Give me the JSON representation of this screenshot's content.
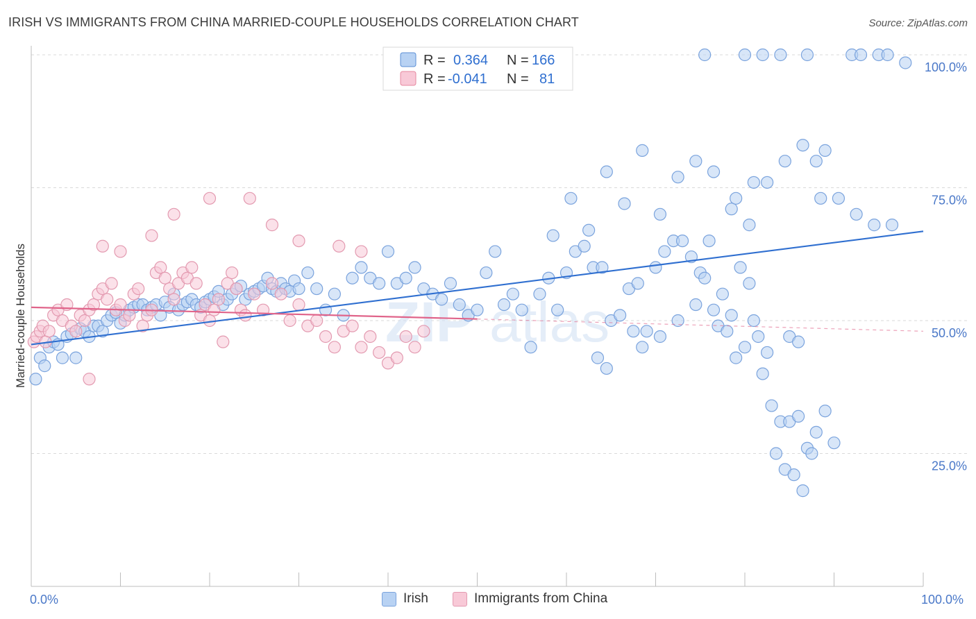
{
  "header": {
    "title": "IRISH VS IMMIGRANTS FROM CHINA MARRIED-COUPLE HOUSEHOLDS CORRELATION CHART",
    "source": "Source: ZipAtlas.com"
  },
  "legend_top": {
    "rows": [
      {
        "r_label": "R =",
        "r_value": "0.364",
        "n_label": "N =",
        "n_value": "166",
        "color": "#a9c8f0",
        "stroke": "#5b8fd6"
      },
      {
        "r_label": "R =",
        "r_value": "-0.041",
        "n_label": "N =",
        "n_value": "81",
        "color": "#f6bfd0",
        "stroke": "#e6889f"
      }
    ]
  },
  "legend_bottom": {
    "items": [
      {
        "label": "Irish",
        "color": "#b8d2f3",
        "stroke": "#7aa3dd"
      },
      {
        "label": "Immigrants from China",
        "color": "#f8c9d7",
        "stroke": "#e39ab0"
      }
    ]
  },
  "watermark": {
    "zip": "ZIP",
    "atlas": "atlas"
  },
  "chart_data": {
    "type": "scatter",
    "title": "IRISH VS IMMIGRANTS FROM CHINA MARRIED-COUPLE HOUSEHOLDS CORRELATION CHART",
    "xlabel": "",
    "ylabel": "Married-couple Households",
    "xlim": [
      0,
      100
    ],
    "ylim": [
      0,
      102
    ],
    "x_tick_labels": [
      "0.0%",
      "100.0%"
    ],
    "y_tick_labels": [
      "25.0%",
      "50.0%",
      "75.0%",
      "100.0%"
    ],
    "y_ticks": [
      25,
      50,
      75,
      100
    ],
    "grid": true,
    "legend_position": "top-center",
    "series": [
      {
        "name": "Irish",
        "color": "#7aa3dd",
        "fill": "#b8d2f3",
        "line_color": "#2f6fd0",
        "trend": {
          "x": [
            0,
            100
          ],
          "y": [
            45.5,
            66.8
          ]
        },
        "points": [
          [
            0.5,
            39
          ],
          [
            1.0,
            43
          ],
          [
            1.5,
            41.5
          ],
          [
            2.0,
            45
          ],
          [
            2.5,
            46
          ],
          [
            3.0,
            45.5
          ],
          [
            3.5,
            43
          ],
          [
            4.0,
            47
          ],
          [
            4.5,
            47.5
          ],
          [
            5.0,
            43
          ],
          [
            5.5,
            48.5
          ],
          [
            6.0,
            48
          ],
          [
            6.5,
            47
          ],
          [
            7.0,
            49
          ],
          [
            7.5,
            49
          ],
          [
            8.0,
            48
          ],
          [
            8.5,
            50
          ],
          [
            9.0,
            51
          ],
          [
            9.5,
            51.5
          ],
          [
            10.0,
            49.5
          ],
          [
            10.5,
            51
          ],
          [
            11.0,
            52
          ],
          [
            11.5,
            52.5
          ],
          [
            12.0,
            53
          ],
          [
            12.5,
            53
          ],
          [
            13.0,
            52
          ],
          [
            13.5,
            52.5
          ],
          [
            14.0,
            53
          ],
          [
            14.5,
            51
          ],
          [
            15.0,
            53.5
          ],
          [
            15.5,
            52.5
          ],
          [
            16.0,
            55
          ],
          [
            16.5,
            52
          ],
          [
            17.0,
            53
          ],
          [
            17.5,
            53.5
          ],
          [
            18.0,
            54
          ],
          [
            18.5,
            53
          ],
          [
            19.0,
            52.5
          ],
          [
            19.5,
            53.5
          ],
          [
            20.0,
            54
          ],
          [
            20.5,
            54.5
          ],
          [
            21.0,
            55.5
          ],
          [
            21.5,
            53
          ],
          [
            22.0,
            54
          ],
          [
            22.5,
            55
          ],
          [
            23.0,
            56
          ],
          [
            23.5,
            56.5
          ],
          [
            24.0,
            54
          ],
          [
            24.5,
            55
          ],
          [
            25.0,
            55.5
          ],
          [
            25.5,
            56
          ],
          [
            26.0,
            56.5
          ],
          [
            26.5,
            58
          ],
          [
            27.0,
            56
          ],
          [
            27.5,
            55.5
          ],
          [
            28.0,
            57
          ],
          [
            28.5,
            56
          ],
          [
            29.0,
            55.5
          ],
          [
            29.5,
            57.5
          ],
          [
            30.0,
            56
          ],
          [
            31.0,
            59
          ],
          [
            32.0,
            56
          ],
          [
            33.0,
            52
          ],
          [
            34.0,
            55
          ],
          [
            35.0,
            51
          ],
          [
            36.0,
            58
          ],
          [
            37.0,
            60
          ],
          [
            38.0,
            58
          ],
          [
            39.0,
            57
          ],
          [
            40.0,
            63
          ],
          [
            41.0,
            57
          ],
          [
            42.0,
            58
          ],
          [
            43.0,
            60
          ],
          [
            44.0,
            56
          ],
          [
            45.0,
            55
          ],
          [
            46.0,
            54
          ],
          [
            47.0,
            57
          ],
          [
            48.0,
            53
          ],
          [
            49.0,
            51
          ],
          [
            50.0,
            52
          ],
          [
            51.0,
            59
          ],
          [
            52.0,
            63
          ],
          [
            53.0,
            53
          ],
          [
            54.0,
            55
          ],
          [
            55.0,
            52
          ],
          [
            56.0,
            45
          ],
          [
            57.0,
            55
          ],
          [
            58.0,
            58
          ],
          [
            59.0,
            52
          ],
          [
            60.0,
            59
          ],
          [
            61.0,
            63
          ],
          [
            62.0,
            64
          ],
          [
            63.0,
            60
          ],
          [
            64.0,
            60
          ],
          [
            65.0,
            50
          ],
          [
            66.0,
            51
          ],
          [
            67.0,
            56
          ],
          [
            68.0,
            57
          ],
          [
            69.0,
            48
          ],
          [
            70.0,
            60
          ],
          [
            71.0,
            63
          ],
          [
            72.0,
            65
          ],
          [
            73.0,
            65
          ],
          [
            74.0,
            62
          ],
          [
            75.0,
            59
          ],
          [
            76.0,
            65
          ],
          [
            77.0,
            49
          ],
          [
            78.0,
            48
          ],
          [
            79.0,
            43
          ],
          [
            80.0,
            45
          ],
          [
            81.0,
            50
          ],
          [
            82.0,
            40
          ],
          [
            83.0,
            34
          ],
          [
            84.0,
            31
          ],
          [
            85.0,
            31
          ],
          [
            86.0,
            32
          ],
          [
            87.0,
            26
          ],
          [
            88.0,
            29
          ],
          [
            89.0,
            33
          ],
          [
            90.0,
            27
          ],
          [
            63.5,
            43
          ],
          [
            64.5,
            41
          ],
          [
            67.5,
            48
          ],
          [
            68.5,
            45
          ],
          [
            70.5,
            47
          ],
          [
            72.5,
            50
          ],
          [
            74.5,
            53
          ],
          [
            75.5,
            58
          ],
          [
            76.5,
            52
          ],
          [
            77.5,
            55
          ],
          [
            78.5,
            51
          ],
          [
            79.5,
            60
          ],
          [
            80.5,
            57
          ],
          [
            81.5,
            47
          ],
          [
            82.5,
            44
          ],
          [
            83.5,
            25
          ],
          [
            84.5,
            22
          ],
          [
            85.5,
            21
          ],
          [
            86.5,
            18
          ],
          [
            87.5,
            25
          ],
          [
            58.5,
            66
          ],
          [
            60.5,
            73
          ],
          [
            62.5,
            67
          ],
          [
            64.5,
            78
          ],
          [
            66.5,
            72
          ],
          [
            68.5,
            82
          ],
          [
            70.5,
            70
          ],
          [
            72.5,
            77
          ],
          [
            74.5,
            80
          ],
          [
            76.5,
            78
          ],
          [
            78.5,
            71
          ],
          [
            80.5,
            68
          ],
          [
            82.5,
            76
          ],
          [
            84.5,
            80
          ],
          [
            86.5,
            83
          ],
          [
            88.5,
            73
          ],
          [
            90.5,
            73
          ],
          [
            92.5,
            70
          ],
          [
            94.5,
            68
          ],
          [
            96.5,
            68
          ],
          [
            75.5,
            100
          ],
          [
            80.0,
            100
          ],
          [
            82.0,
            100
          ],
          [
            84.0,
            100
          ],
          [
            87.0,
            100
          ],
          [
            92.0,
            100
          ],
          [
            98.0,
            98.5
          ],
          [
            95.0,
            100
          ],
          [
            96.0,
            100
          ],
          [
            93.0,
            100
          ],
          [
            89.0,
            82
          ],
          [
            88.0,
            80
          ],
          [
            85.0,
            47
          ],
          [
            86.0,
            46
          ],
          [
            79.0,
            73
          ],
          [
            81.0,
            76
          ]
        ]
      },
      {
        "name": "Immigrants from China",
        "color": "#e39ab0",
        "fill": "#f8c9d7",
        "line_color": "#e0648a",
        "trend": {
          "x": [
            0,
            50
          ],
          "y": [
            52.5,
            50.3
          ]
        },
        "trend_dashed": {
          "x": [
            50,
            100
          ],
          "y": [
            50.3,
            48.0
          ]
        },
        "points": [
          [
            0.3,
            46
          ],
          [
            0.6,
            47
          ],
          [
            1.0,
            48
          ],
          [
            1.3,
            49
          ],
          [
            1.6,
            46
          ],
          [
            2.0,
            48
          ],
          [
            2.5,
            51
          ],
          [
            3.0,
            52
          ],
          [
            3.5,
            50
          ],
          [
            4.0,
            53
          ],
          [
            4.5,
            49
          ],
          [
            5.0,
            48
          ],
          [
            5.5,
            51
          ],
          [
            6.0,
            50
          ],
          [
            6.5,
            52
          ],
          [
            7.0,
            53
          ],
          [
            7.5,
            55
          ],
          [
            8.0,
            56
          ],
          [
            8.5,
            54
          ],
          [
            9.0,
            57
          ],
          [
            9.5,
            52
          ],
          [
            10.0,
            53
          ],
          [
            10.5,
            50
          ],
          [
            11.0,
            51
          ],
          [
            11.5,
            55
          ],
          [
            12.0,
            56
          ],
          [
            12.5,
            49
          ],
          [
            13.0,
            51
          ],
          [
            13.5,
            52
          ],
          [
            14.0,
            59
          ],
          [
            14.5,
            60
          ],
          [
            15.0,
            58
          ],
          [
            15.5,
            56
          ],
          [
            16.0,
            54
          ],
          [
            16.5,
            57
          ],
          [
            17.0,
            59
          ],
          [
            17.5,
            58
          ],
          [
            18.0,
            60
          ],
          [
            18.5,
            57
          ],
          [
            19.0,
            51
          ],
          [
            19.5,
            53
          ],
          [
            20.0,
            50
          ],
          [
            20.5,
            52
          ],
          [
            21.0,
            54
          ],
          [
            21.5,
            46
          ],
          [
            22.0,
            57
          ],
          [
            22.5,
            59
          ],
          [
            23.0,
            56
          ],
          [
            23.5,
            52
          ],
          [
            24.0,
            51
          ],
          [
            25.0,
            55
          ],
          [
            26.0,
            52
          ],
          [
            27.0,
            57
          ],
          [
            28.0,
            55
          ],
          [
            29.0,
            50
          ],
          [
            30.0,
            53
          ],
          [
            31.0,
            49
          ],
          [
            32.0,
            50
          ],
          [
            33.0,
            47
          ],
          [
            34.0,
            45
          ],
          [
            35.0,
            48
          ],
          [
            36.0,
            49
          ],
          [
            37.0,
            45
          ],
          [
            38.0,
            47
          ],
          [
            39.0,
            44
          ],
          [
            40.0,
            42
          ],
          [
            41.0,
            43
          ],
          [
            42.0,
            47
          ],
          [
            43.0,
            45
          ],
          [
            44.0,
            48
          ],
          [
            8.0,
            64
          ],
          [
            10.0,
            63
          ],
          [
            13.5,
            66
          ],
          [
            16.0,
            70
          ],
          [
            20.0,
            73
          ],
          [
            24.5,
            73
          ],
          [
            27.0,
            68
          ],
          [
            30.0,
            65
          ],
          [
            34.5,
            64
          ],
          [
            37.0,
            63
          ],
          [
            6.5,
            39
          ]
        ]
      }
    ]
  }
}
